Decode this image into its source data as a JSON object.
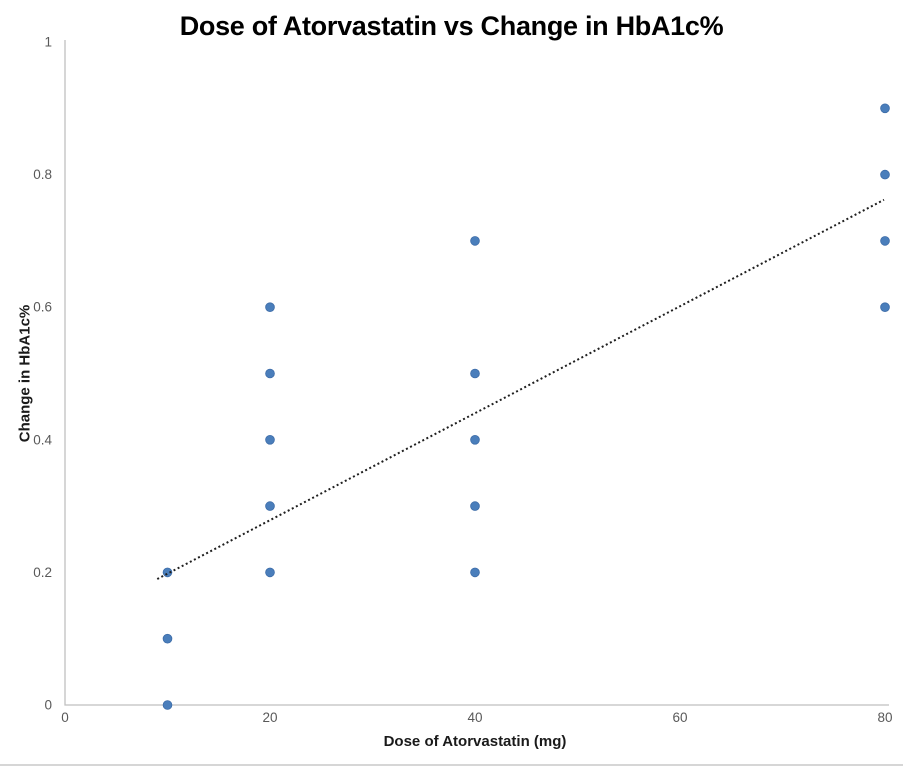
{
  "page": {
    "background_color": "#ffffff",
    "bottom_divider_color": "#d6d6d6"
  },
  "chart_data": {
    "type": "scatter",
    "title": "Dose of Atorvastatin vs Change in HbA1c%",
    "xlabel": "Dose of Atorvastatin (mg)",
    "ylabel": "Change in HbA1c%",
    "xlim": [
      0,
      80
    ],
    "ylim": [
      0,
      1
    ],
    "x_ticks": [
      0,
      20,
      40,
      60,
      80
    ],
    "x_tick_labels": [
      "0",
      "20",
      "40",
      "60",
      "80"
    ],
    "y_ticks": [
      0,
      0.2,
      0.4,
      0.6,
      0.8,
      1
    ],
    "y_tick_labels": [
      "0",
      "0.2",
      "0.4",
      "0.6",
      "0.8",
      "1"
    ],
    "grid": false,
    "legend": false,
    "series": [
      {
        "name": "Change in HbA1c%",
        "marker": "circle",
        "marker_color": "#4a7ebb",
        "marker_edge_color": "#3d6ca8",
        "points": [
          {
            "x": 10,
            "y": 0.0
          },
          {
            "x": 10,
            "y": 0.1
          },
          {
            "x": 10,
            "y": 0.2
          },
          {
            "x": 20,
            "y": 0.2
          },
          {
            "x": 20,
            "y": 0.3
          },
          {
            "x": 20,
            "y": 0.4
          },
          {
            "x": 20,
            "y": 0.5
          },
          {
            "x": 20,
            "y": 0.6
          },
          {
            "x": 40,
            "y": 0.2
          },
          {
            "x": 40,
            "y": 0.3
          },
          {
            "x": 40,
            "y": 0.4
          },
          {
            "x": 40,
            "y": 0.5
          },
          {
            "x": 40,
            "y": 0.7
          },
          {
            "x": 80,
            "y": 0.6
          },
          {
            "x": 80,
            "y": 0.7
          },
          {
            "x": 80,
            "y": 0.8
          },
          {
            "x": 80,
            "y": 0.9
          }
        ]
      }
    ],
    "trendline": {
      "type": "linear",
      "line_style": "dotted",
      "color": "#1f1f1f",
      "start": {
        "x": 9.0,
        "y": 0.19
      },
      "end": {
        "x": 79.9,
        "y": 0.762
      }
    },
    "colors": {
      "axis_line": "#bfbfbf",
      "tick_label": "#595959",
      "title": "#000000",
      "axis_title": "#1a1a1a"
    }
  }
}
